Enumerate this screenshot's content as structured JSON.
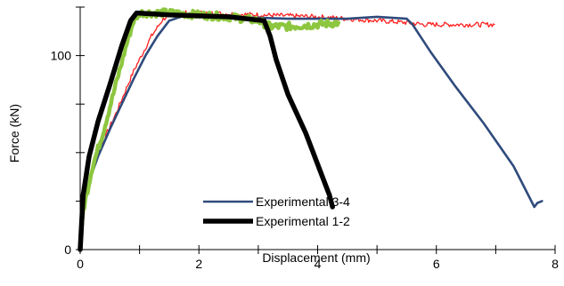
{
  "chart_data": {
    "type": "line",
    "title": "",
    "xlabel": "Displacement (mm)",
    "ylabel": "Force (kN)",
    "xlim": [
      0,
      8
    ],
    "ylim": [
      0,
      125
    ],
    "x_ticks": [
      0,
      2,
      4,
      6,
      8
    ],
    "y_ticks": [
      0,
      100
    ],
    "grid": false,
    "legend_position": "bottom-center",
    "series": [
      {
        "name": "Experimental 3-4",
        "color": "#2f4b7c",
        "style": "smooth",
        "x": [
          0,
          0.05,
          0.15,
          0.3,
          0.5,
          0.7,
          0.9,
          1.1,
          1.3,
          1.5,
          1.8,
          2.5,
          3.5,
          4.5,
          5.0,
          5.5,
          5.6,
          5.9,
          6.3,
          6.8,
          7.3,
          7.65,
          7.7,
          7.78
        ],
        "y": [
          0,
          22,
          35,
          48,
          62,
          75,
          88,
          100,
          110,
          118,
          121,
          120,
          119,
          119,
          120,
          119,
          116,
          102,
          85,
          65,
          43,
          22,
          24,
          25
        ]
      },
      {
        "name": "Experimental 1-2",
        "color": "#000000",
        "style": "smooth",
        "x": [
          0,
          0.05,
          0.15,
          0.3,
          0.5,
          0.7,
          0.85,
          0.95,
          1.5,
          2.5,
          3.1,
          3.2,
          3.3,
          3.5,
          3.8,
          4.05,
          4.2,
          4.25
        ],
        "y": [
          0,
          28,
          48,
          66,
          85,
          105,
          118,
          122,
          121,
          120,
          118,
          110,
          98,
          80,
          60,
          40,
          28,
          22
        ]
      },
      {
        "name": "",
        "color": "#ff1f1f",
        "style": "noisy",
        "x": [
          0,
          0.1,
          0.3,
          0.6,
          0.9,
          1.2,
          1.4,
          1.6,
          2.0,
          3.0,
          4.0,
          5.0,
          5.5,
          5.8,
          6.0,
          6.5,
          6.98
        ],
        "y": [
          0,
          28,
          50,
          70,
          92,
          110,
          119,
          122,
          122,
          121,
          120,
          118,
          117,
          116,
          116,
          116,
          116
        ]
      },
      {
        "name": "",
        "color": "#8dc63f",
        "style": "noisy",
        "x": [
          0,
          0.05,
          0.2,
          0.4,
          0.6,
          0.8,
          0.9,
          1.0,
          1.5,
          2.5,
          3.0,
          3.2,
          3.5,
          4.0,
          4.35
        ],
        "y": [
          0,
          20,
          42,
          62,
          85,
          108,
          118,
          122,
          122,
          120,
          118,
          115,
          115,
          116,
          117
        ]
      }
    ]
  }
}
